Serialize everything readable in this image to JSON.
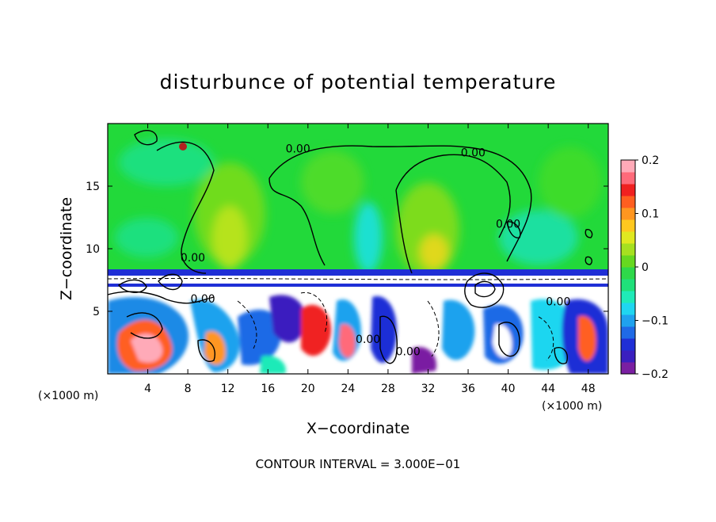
{
  "chart_data": {
    "type": "heatmap",
    "title": "disturbunce of potential temperature",
    "xlabel": "X−coordinate",
    "ylabel": "Z−coordinate",
    "x_unit": "(×1000 m)",
    "x_unit_right": "(×1000 m)",
    "xlim": [
      0,
      50
    ],
    "ylim": [
      0,
      20
    ],
    "x_ticks": [
      4,
      8,
      12,
      16,
      20,
      24,
      28,
      32,
      36,
      40,
      44,
      48
    ],
    "x_tick_labels": [
      "4",
      "8",
      "12",
      "16",
      "20",
      "24",
      "28",
      "32",
      "36",
      "40",
      "44",
      "48"
    ],
    "y_ticks": [
      5,
      10,
      15
    ],
    "y_tick_labels": [
      "5",
      "10",
      "15"
    ],
    "colorbar": {
      "range": [
        -0.2,
        0.2
      ],
      "ticks": [
        0.2,
        0.1,
        0,
        -0.1,
        -0.2
      ],
      "tick_labels": [
        "0.2",
        "0.1",
        "0",
        "−0.1",
        "−0.2"
      ],
      "colors": [
        "#7a1fa2",
        "#3a1fbf",
        "#1f2fd6",
        "#1f6ae6",
        "#1fa2ee",
        "#1fd6f0",
        "#1feab8",
        "#1fe07a",
        "#2ed84a",
        "#66d820",
        "#a6e020",
        "#e0e820",
        "#ffc81f",
        "#ff9620",
        "#ff5e20",
        "#f02020",
        "#ff6a7a",
        "#ffaab8"
      ]
    },
    "contour_labels": [
      {
        "text": "0.00",
        "x": 19,
        "y": 18
      },
      {
        "text": "0.00",
        "x": 36.5,
        "y": 17.7
      },
      {
        "text": "0.00",
        "x": 8.5,
        "y": 9.3
      },
      {
        "text": "0.00",
        "x": 9.5,
        "y": 6.0
      },
      {
        "text": "0.00",
        "x": 40,
        "y": 12
      },
      {
        "text": "0.00",
        "x": 45,
        "y": 5.8
      },
      {
        "text": "0.00",
        "x": 26,
        "y": 2.8
      },
      {
        "text": "0.00",
        "x": 30,
        "y": 1.8
      }
    ],
    "contour_interval": "CONTOUR INTERVAL = 3.000E−01"
  }
}
